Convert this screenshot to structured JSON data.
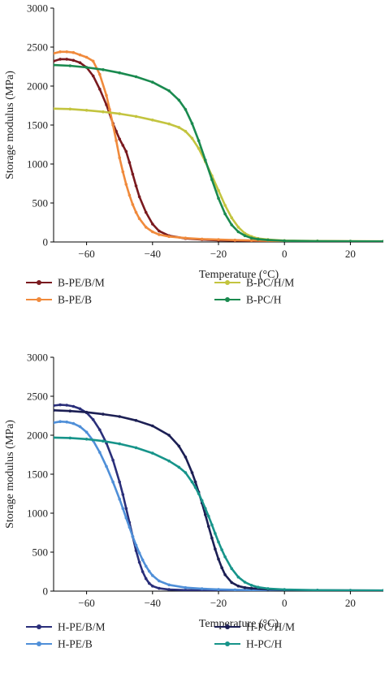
{
  "chart_data": [
    {
      "type": "line",
      "xlabel": "Temperature (°C)",
      "ylabel": "Storage modulus (MPa)",
      "xlim": [
        -70,
        30
      ],
      "ylim": [
        0,
        3000
      ],
      "xticks": [
        -60,
        -40,
        -20,
        0,
        20
      ],
      "yticks": [
        0,
        500,
        1000,
        1500,
        2000,
        2500,
        3000
      ],
      "grid": false,
      "legend_position": "bottom",
      "series": [
        {
          "name": "B-PE/B/M",
          "color": "#7a1a1f",
          "x": [
            -70,
            -68,
            -66,
            -64,
            -62,
            -60,
            -58,
            -56,
            -54,
            -52,
            -51,
            -50,
            -49,
            -48,
            -47,
            -46,
            -45,
            -44,
            -42,
            -40,
            -38,
            -35,
            -30,
            -25,
            -20,
            -15,
            -10,
            -5,
            0,
            10,
            20,
            30
          ],
          "y": [
            2320,
            2345,
            2345,
            2330,
            2300,
            2240,
            2130,
            1960,
            1760,
            1520,
            1420,
            1320,
            1240,
            1160,
            1020,
            870,
            720,
            580,
            380,
            230,
            140,
            80,
            45,
            30,
            22,
            18,
            15,
            12,
            10,
            8,
            7,
            6
          ]
        },
        {
          "name": "B-PE/B",
          "color": "#f08a3c",
          "x": [
            -70,
            -68,
            -66,
            -64,
            -62,
            -60,
            -58,
            -56,
            -54,
            -53,
            -52,
            -51,
            -50,
            -49,
            -48,
            -47,
            -46,
            -45,
            -44,
            -42,
            -40,
            -38,
            -35,
            -30,
            -25,
            -20,
            -15,
            -10,
            -5,
            0,
            10,
            20,
            30
          ],
          "y": [
            2420,
            2440,
            2440,
            2430,
            2400,
            2370,
            2320,
            2150,
            1880,
            1700,
            1500,
            1300,
            1080,
            900,
            740,
            600,
            480,
            380,
            300,
            190,
            130,
            95,
            70,
            50,
            38,
            30,
            24,
            20,
            16,
            12,
            9,
            7,
            6
          ]
        },
        {
          "name": "B-PC/H/M",
          "color": "#c3c43f",
          "x": [
            -70,
            -65,
            -60,
            -55,
            -50,
            -45,
            -40,
            -35,
            -32,
            -30,
            -28,
            -26,
            -24,
            -22,
            -20,
            -18,
            -16,
            -14,
            -12,
            -10,
            -8,
            -5,
            0,
            10,
            20,
            30
          ],
          "y": [
            1710,
            1705,
            1690,
            1670,
            1645,
            1610,
            1565,
            1515,
            1470,
            1420,
            1330,
            1200,
            1030,
            850,
            660,
            470,
            310,
            190,
            110,
            70,
            45,
            30,
            18,
            12,
            9,
            8
          ]
        },
        {
          "name": "B-PC/H",
          "color": "#1a8a4f",
          "x": [
            -70,
            -65,
            -60,
            -55,
            -50,
            -45,
            -40,
            -35,
            -32,
            -30,
            -28,
            -26,
            -24,
            -22,
            -20,
            -18,
            -16,
            -14,
            -12,
            -10,
            -8,
            -5,
            0,
            10,
            20,
            30
          ],
          "y": [
            2270,
            2260,
            2240,
            2210,
            2170,
            2120,
            2050,
            1940,
            1820,
            1700,
            1520,
            1300,
            1050,
            800,
            560,
            360,
            220,
            130,
            80,
            50,
            35,
            25,
            15,
            10,
            8,
            7
          ]
        }
      ]
    },
    {
      "type": "line",
      "xlabel": "Temperature (°C)",
      "ylabel": "Storage modulus (MPa)",
      "xlim": [
        -70,
        30
      ],
      "ylim": [
        0,
        3000
      ],
      "xticks": [
        -60,
        -40,
        -20,
        0,
        20
      ],
      "yticks": [
        0,
        500,
        1000,
        1500,
        2000,
        2500,
        3000
      ],
      "grid": false,
      "legend_position": "bottom",
      "series": [
        {
          "name": "H-PE/B/M",
          "color": "#2a2f7a",
          "x": [
            -70,
            -68,
            -66,
            -64,
            -62,
            -60,
            -58,
            -56,
            -54,
            -52,
            -50,
            -49,
            -48,
            -47,
            -46,
            -45,
            -44,
            -43,
            -42,
            -41,
            -40,
            -38,
            -35,
            -30,
            -25,
            -20,
            -15,
            -10,
            -5,
            0,
            10,
            20,
            30
          ],
          "y": [
            2380,
            2390,
            2385,
            2370,
            2340,
            2290,
            2200,
            2070,
            1900,
            1680,
            1400,
            1240,
            1060,
            880,
            700,
            520,
            370,
            250,
            160,
            100,
            65,
            35,
            20,
            12,
            9,
            8,
            7,
            6,
            6,
            5,
            5,
            5,
            5
          ]
        },
        {
          "name": "H-PE/B",
          "color": "#4f8fd8",
          "x": [
            -70,
            -68,
            -66,
            -64,
            -62,
            -60,
            -58,
            -56,
            -54,
            -52,
            -50,
            -49,
            -48,
            -47,
            -46,
            -45,
            -44,
            -43,
            -42,
            -41,
            -40,
            -38,
            -35,
            -30,
            -25,
            -20,
            -15,
            -10,
            -5,
            0,
            10,
            20,
            30
          ],
          "y": [
            2160,
            2175,
            2170,
            2150,
            2110,
            2040,
            1930,
            1780,
            1600,
            1400,
            1180,
            1060,
            940,
            820,
            700,
            590,
            490,
            400,
            320,
            255,
            200,
            130,
            80,
            45,
            30,
            22,
            17,
            14,
            12,
            10,
            8,
            7,
            6
          ]
        },
        {
          "name": "H-PC/H/M",
          "color": "#1c1f54",
          "x": [
            -70,
            -65,
            -60,
            -55,
            -50,
            -45,
            -40,
            -35,
            -32,
            -30,
            -28,
            -27,
            -26,
            -25,
            -24,
            -23,
            -22,
            -21,
            -20,
            -19,
            -18,
            -16,
            -14,
            -12,
            -10,
            -5,
            0,
            10,
            20,
            30
          ],
          "y": [
            2320,
            2310,
            2295,
            2270,
            2240,
            2190,
            2120,
            2000,
            1860,
            1720,
            1520,
            1400,
            1270,
            1130,
            980,
            830,
            680,
            540,
            410,
            300,
            210,
            110,
            65,
            45,
            35,
            22,
            15,
            10,
            8,
            7
          ]
        },
        {
          "name": "H-PC/H",
          "color": "#17948a",
          "x": [
            -70,
            -65,
            -60,
            -55,
            -50,
            -45,
            -40,
            -35,
            -32,
            -30,
            -28,
            -27,
            -26,
            -25,
            -24,
            -23,
            -22,
            -21,
            -20,
            -19,
            -18,
            -16,
            -14,
            -12,
            -10,
            -8,
            -5,
            0,
            10,
            20,
            30
          ],
          "y": [
            1970,
            1965,
            1950,
            1925,
            1890,
            1840,
            1770,
            1670,
            1590,
            1520,
            1400,
            1330,
            1250,
            1160,
            1060,
            960,
            850,
            740,
            630,
            530,
            440,
            290,
            180,
            115,
            75,
            50,
            32,
            20,
            12,
            9,
            8
          ]
        }
      ]
    }
  ]
}
